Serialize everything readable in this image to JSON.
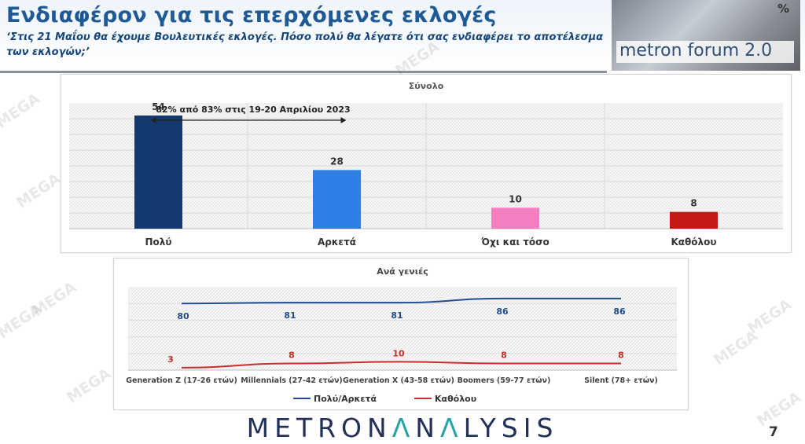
{
  "header": {
    "title": "Ενδιαφέρον για τις επερχόμενες εκλογές",
    "subtitle": "‘Στις 21 Μαΐου θα έχουμε Βουλευτικές εκλογές. Πόσο πολύ θα λέγατε ότι σας ενδιαφέρει το αποτέλεσμα των εκλογών;’"
  },
  "logo": {
    "forum_text": "metron forum 2.0",
    "percent_glyph": "%"
  },
  "watermark": "MEGA",
  "footer": {
    "brand": "METRONANALYSIS",
    "page_number": "7"
  },
  "colors": {
    "title": "#1f5a96",
    "navy": "#14396e",
    "blue": "#2f7fe6",
    "pink": "#f57ec0",
    "red": "#c21b17",
    "line_red": "#c2312a"
  },
  "chart_data": [
    {
      "type": "bar",
      "title": "Σύνολο",
      "categories": [
        "Πολύ",
        "Αρκετά",
        "Όχι και τόσο",
        "Καθόλου"
      ],
      "values": [
        54,
        28,
        10,
        8
      ],
      "bar_colors": [
        "#14396e",
        "#2f7fe6",
        "#f57ec0",
        "#c21b17"
      ],
      "ylim": [
        0,
        60
      ],
      "grid": true,
      "annotation": "82% από 83% στις 19-20 Απριλίου 2023"
    },
    {
      "type": "line",
      "title": "Ανά γενιές",
      "categories": [
        "Generation Z (17-26 ετών)",
        "Millennials (27-42 ετών)",
        "Generation X (43-58 ετών)",
        "Boomers (59-77 ετών)",
        "Silent (78+ ετών)"
      ],
      "series": [
        {
          "name": "Πολύ/Αρκετά",
          "values": [
            80,
            81,
            81,
            86,
            86
          ],
          "color": "#1f4e8c"
        },
        {
          "name": "Καθόλου",
          "values": [
            3,
            8,
            10,
            8,
            8
          ],
          "color": "#c2312a"
        }
      ],
      "ylim": [
        0,
        100
      ],
      "grid": true,
      "legend": "bottom"
    }
  ]
}
